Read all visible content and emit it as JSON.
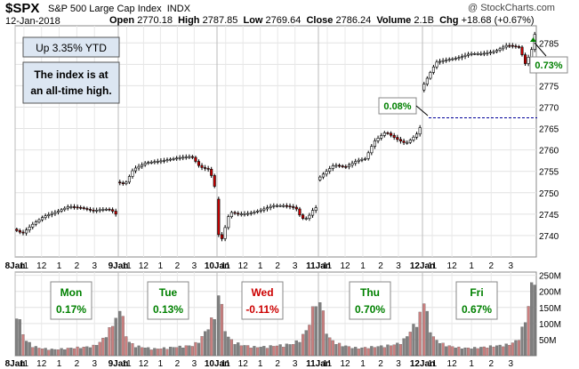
{
  "header": {
    "symbol": "$SPX",
    "name": "S&P 500 Large Cap Index",
    "exchange": "INDX",
    "date": "12-Jan-2018",
    "open_label": "Open",
    "open": "2770.18",
    "high_label": "High",
    "high": "2787.85",
    "low_label": "Low",
    "low": "2769.64",
    "close_label": "Close",
    "close": "2786.24",
    "volume_label": "Volume",
    "volume": "2.1B",
    "chg_label": "Chg",
    "chg": "+18.68 (+0.67%)",
    "credit": "@ StockCharts.com"
  },
  "annotations": {
    "ytd": "Up 3.35% YTD",
    "note_line1": "The index is at",
    "note_line2": "an all-time high.",
    "gap_label": "0.08%",
    "last_label": "0.73%"
  },
  "days": [
    {
      "name": "Mon",
      "pct": "0.17%",
      "color": "#008000"
    },
    {
      "name": "Tue",
      "pct": "0.13%",
      "color": "#008000"
    },
    {
      "name": "Wed",
      "pct": "-0.11%",
      "color": "#cc0000"
    },
    {
      "name": "Thu",
      "pct": "0.70%",
      "color": "#008000"
    },
    {
      "name": "Fri",
      "pct": "0.67%",
      "color": "#008000"
    }
  ],
  "colors": {
    "up": "#ffffff",
    "down": "#cc0000",
    "vol_up": "#808080",
    "vol_down": "#cc8080",
    "green_text": "#008000",
    "box_fill": "#dce6f2",
    "reference_line": "#000099"
  },
  "chart_data": {
    "type": "candlestick",
    "price_axis": {
      "ticks": [
        2740,
        2745,
        2750,
        2755,
        2760,
        2765,
        2770,
        2775,
        2780,
        2785
      ],
      "range": [
        2735,
        2789
      ]
    },
    "volume_axis": {
      "ticks": [
        "250M",
        "200M",
        "150M",
        "100M",
        "50M"
      ],
      "range": [
        0,
        260
      ]
    },
    "x_tick_labels": [
      "8Jan",
      "11",
      "12",
      "1",
      "2",
      "3",
      "9Jan",
      "11",
      "12",
      "1",
      "2",
      "3",
      "10Jan",
      "11",
      "12",
      "1",
      "2",
      "3",
      "11Jan",
      "11",
      "12",
      "1",
      "2",
      "3",
      "12Jan",
      "11",
      "12",
      "1",
      "2",
      "3"
    ],
    "reference_line": 2767.5,
    "price_segments": [
      {
        "day": "Mon",
        "points": [
          [
            0,
            2741.5
          ],
          [
            6,
            2740.5
          ],
          [
            12,
            2742.5
          ],
          [
            20,
            2744.5
          ],
          [
            28,
            2745.5
          ],
          [
            36,
            2746.8
          ],
          [
            44,
            2746.5
          ],
          [
            52,
            2745.8
          ],
          [
            60,
            2746.2
          ],
          [
            64,
            2746.0
          ],
          [
            67,
            2745.0
          ]
        ]
      },
      {
        "day": "Tue",
        "points": [
          [
            0,
            2752.5
          ],
          [
            4,
            2752.0
          ],
          [
            8,
            2755.5
          ],
          [
            14,
            2757.0
          ],
          [
            22,
            2757.5
          ],
          [
            30,
            2758.2
          ],
          [
            36,
            2758.5
          ],
          [
            40,
            2756.0
          ],
          [
            44,
            2755.5
          ],
          [
            46,
            2753.5
          ],
          [
            47,
            2751.5
          ]
        ]
      },
      {
        "day": "Wed",
        "points": [
          [
            0,
            2748.5
          ],
          [
            3,
            2737.5
          ],
          [
            6,
            2741.0
          ],
          [
            10,
            2745.5
          ],
          [
            16,
            2745.0
          ],
          [
            24,
            2745.2
          ],
          [
            32,
            2746.0
          ],
          [
            40,
            2747.0
          ],
          [
            48,
            2747.0
          ],
          [
            56,
            2746.5
          ],
          [
            60,
            2744.0
          ],
          [
            64,
            2744.0
          ],
          [
            68,
            2746.0
          ],
          [
            70,
            2746.5
          ]
        ]
      },
      {
        "day": "Thu",
        "points": [
          [
            0,
            2753.0
          ],
          [
            6,
            2754.8
          ],
          [
            12,
            2756.5
          ],
          [
            20,
            2756.0
          ],
          [
            28,
            2757.5
          ],
          [
            34,
            2758.0
          ],
          [
            40,
            2762.0
          ],
          [
            48,
            2764.2
          ],
          [
            56,
            2762.5
          ],
          [
            62,
            2761.5
          ],
          [
            66,
            2762.5
          ],
          [
            70,
            2763.8
          ],
          [
            72,
            2765.2
          ]
        ]
      },
      {
        "day": "Fri",
        "points": [
          [
            0,
            2774.0
          ],
          [
            6,
            2778.0
          ],
          [
            10,
            2780.5
          ],
          [
            16,
            2781.0
          ],
          [
            24,
            2781.5
          ],
          [
            32,
            2782.5
          ],
          [
            40,
            2782.5
          ],
          [
            48,
            2783.0
          ],
          [
            56,
            2784.5
          ],
          [
            64,
            2784.0
          ],
          [
            68,
            2780.0
          ],
          [
            72,
            2783.5
          ],
          [
            74,
            2787.0
          ]
        ]
      }
    ],
    "volume_segments": [
      {
        "day": "Mon",
        "values": [
          135,
          50,
          30,
          22,
          20,
          18,
          20,
          22,
          24,
          25,
          28,
          40,
          70,
          110
        ]
      },
      {
        "day": "Tue",
        "values": [
          155,
          45,
          30,
          25,
          22,
          20,
          22,
          24,
          26,
          28,
          30,
          45,
          80,
          120
        ]
      },
      {
        "day": "Wed",
        "values": [
          200,
          60,
          40,
          32,
          28,
          25,
          26,
          28,
          30,
          32,
          35,
          50,
          85,
          170
        ]
      },
      {
        "day": "Thu",
        "values": [
          170,
          55,
          38,
          30,
          25,
          22,
          24,
          26,
          28,
          30,
          34,
          48,
          80,
          120
        ]
      },
      {
        "day": "Fri",
        "values": [
          160,
          55,
          36,
          28,
          24,
          22,
          23,
          25,
          28,
          30,
          33,
          45,
          110,
          255
        ]
      }
    ]
  }
}
